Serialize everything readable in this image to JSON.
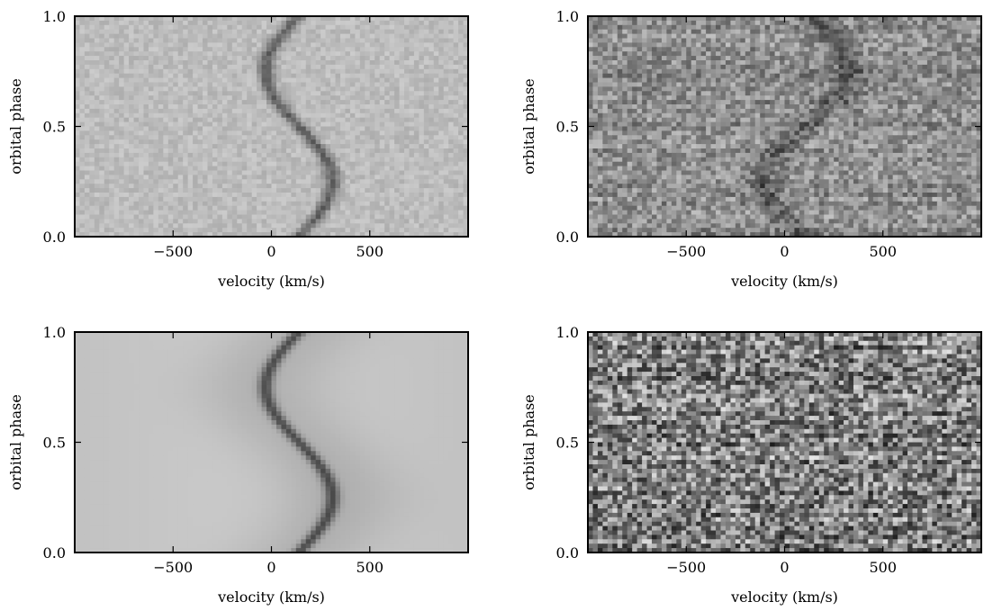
{
  "chart_data": [
    {
      "type": "heatmap",
      "panel": "top-left",
      "description": "observed trailed spectra",
      "xlabel": "velocity (km/s)",
      "ylabel": "orbital phase",
      "xlim": [
        -1000,
        1000
      ],
      "ylim": [
        0.0,
        1.0
      ],
      "xticks": [
        -500,
        0,
        500
      ],
      "xtick_labels": [
        "−500",
        "0",
        "500"
      ],
      "yticks": [
        0.0,
        0.5,
        1.0
      ],
      "ytick_labels": [
        "0.0",
        "0.5",
        "1.0"
      ],
      "colormap": "gray",
      "background_level": 0.74,
      "noise": 0.06,
      "feature": {
        "kind": "absorption-s-wave",
        "gamma": 140,
        "K": 170,
        "phase0": 0.75,
        "width": 28,
        "depth": 0.36,
        "broad_depth": 0.0
      },
      "grid": false
    },
    {
      "type": "heatmap",
      "panel": "top-right",
      "description": "residual spectra with faint secondary track",
      "xlabel": "velocity (km/s)",
      "ylabel": "orbital phase",
      "xlim": [
        -1000,
        1000
      ],
      "ylim": [
        0.0,
        1.0
      ],
      "xticks": [
        -500,
        0,
        500
      ],
      "xtick_labels": [
        "−500",
        "0",
        "500"
      ],
      "yticks": [
        0.0,
        0.5,
        1.0
      ],
      "ytick_labels": [
        "0.0",
        "0.5",
        "1.0"
      ],
      "colormap": "gray",
      "background_level": 0.55,
      "noise": 0.17,
      "feature": {
        "kind": "absorption-s-wave",
        "gamma": 110,
        "K": 220,
        "phase0": 0.25,
        "width": 55,
        "depth": 0.18,
        "broad_depth": 0.0
      },
      "grid": false
    },
    {
      "type": "heatmap",
      "panel": "bottom-left",
      "description": "model trailed spectra",
      "xlabel": "velocity (km/s)",
      "ylabel": "orbital phase",
      "xlim": [
        -1000,
        1000
      ],
      "ylim": [
        0.0,
        1.0
      ],
      "xticks": [
        -500,
        0,
        500
      ],
      "xtick_labels": [
        "−500",
        "0",
        "500"
      ],
      "yticks": [
        0.0,
        0.5,
        1.0
      ],
      "ytick_labels": [
        "0.0",
        "0.5",
        "1.0"
      ],
      "colormap": "gray",
      "background_level": 0.8,
      "noise": 0.0,
      "feature": {
        "kind": "absorption-s-wave",
        "gamma": 140,
        "K": 170,
        "phase0": 0.75,
        "width": 26,
        "depth": 0.4,
        "broad_depth": 0.1
      },
      "grid": false
    },
    {
      "type": "heatmap",
      "panel": "bottom-right",
      "description": "residuals (observed minus model)",
      "xlabel": "velocity (km/s)",
      "ylabel": "orbital phase",
      "xlim": [
        -1000,
        1000
      ],
      "ylim": [
        0.0,
        1.0
      ],
      "xticks": [
        -500,
        0,
        500
      ],
      "xtick_labels": [
        "−500",
        "0",
        "500"
      ],
      "yticks": [
        0.0,
        0.5,
        1.0
      ],
      "ytick_labels": [
        "0.0",
        "0.5",
        "1.0"
      ],
      "colormap": "gray",
      "background_level": 0.5,
      "noise": 0.32,
      "feature": {
        "kind": "none",
        "gamma": 0,
        "K": 0,
        "phase0": 0,
        "width": 1,
        "depth": 0,
        "broad_depth": 0.0
      },
      "grid": false
    }
  ]
}
